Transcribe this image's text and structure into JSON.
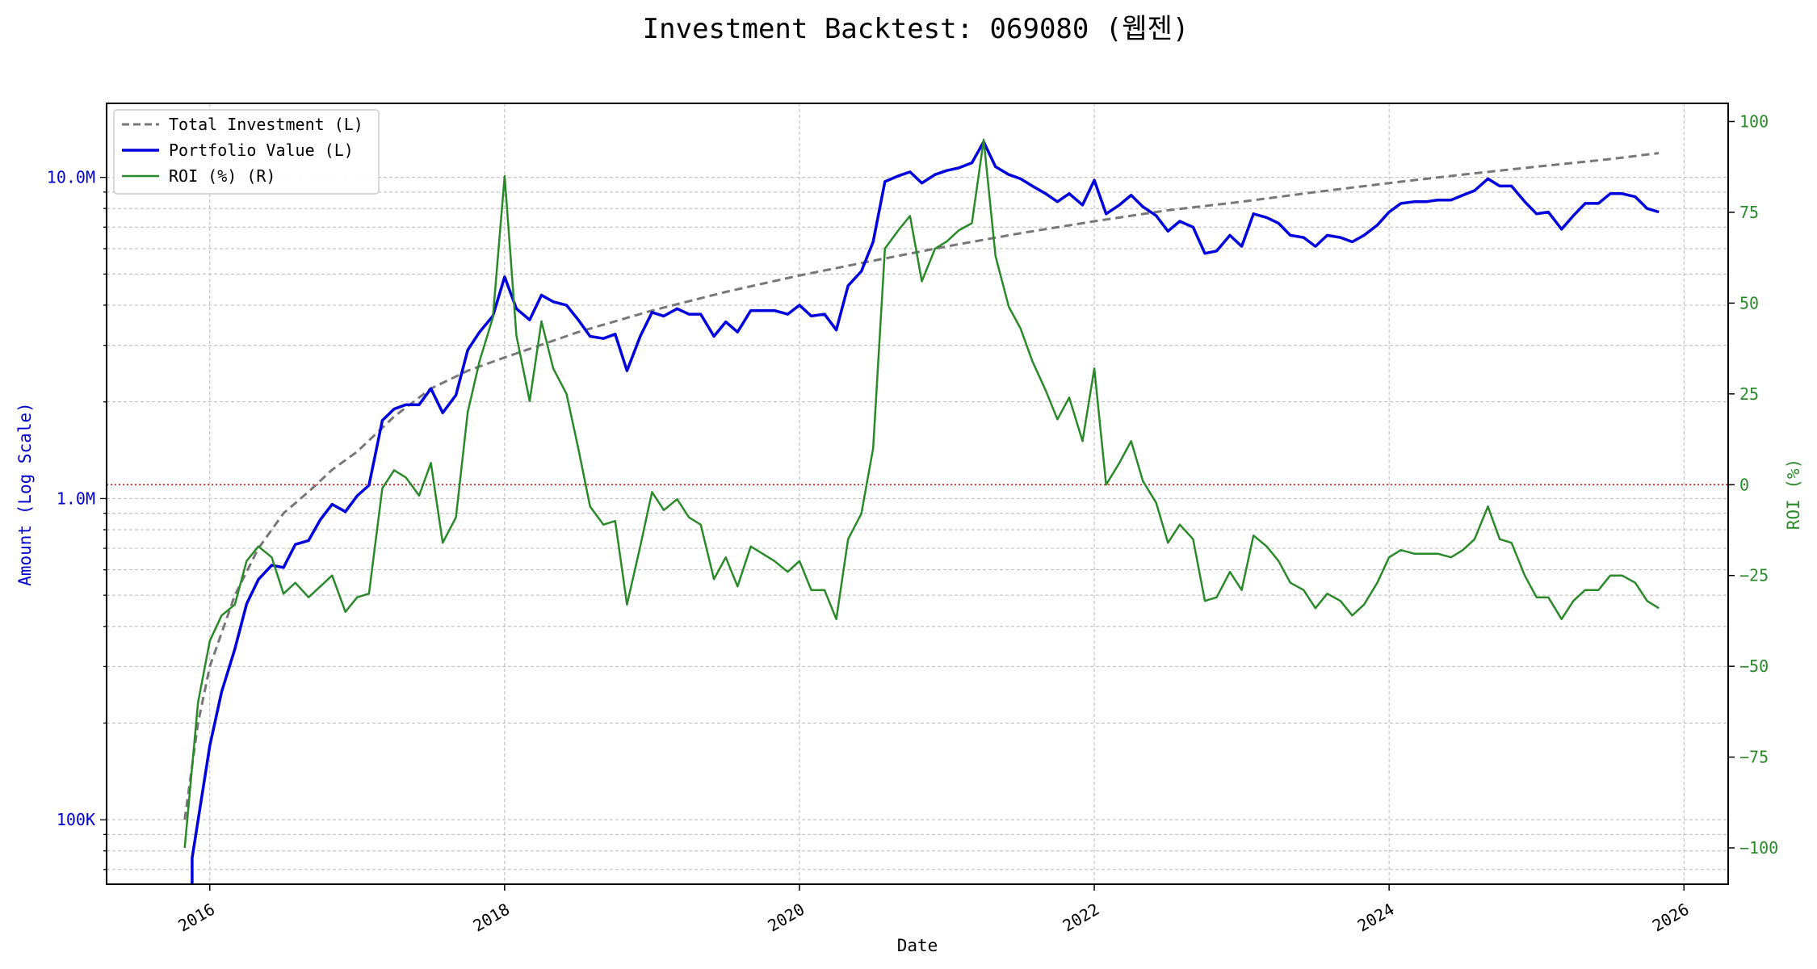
{
  "chart_data": {
    "type": "line",
    "title": "Investment Backtest: 069080 (웹젠)",
    "xlabel": "Date",
    "ylabel_left": "Amount (Log Scale)",
    "ylabel_right": "ROI (%)",
    "left_scale": "log",
    "left_ylim": [
      63000,
      17000000
    ],
    "right_ylim": [
      -110,
      105
    ],
    "xlim": [
      2015.3,
      2026.3
    ],
    "x_ticks": [
      2016,
      2018,
      2020,
      2022,
      2024,
      2026
    ],
    "x_tick_labels": [
      "2016",
      "2018",
      "2020",
      "2022",
      "2024",
      "2026"
    ],
    "left_ticks": [
      100000,
      1000000,
      10000000
    ],
    "left_tick_labels": [
      "100K",
      "1.0M",
      "10.0M"
    ],
    "right_ticks": [
      -100,
      -75,
      -50,
      -25,
      0,
      25,
      50,
      75,
      100
    ],
    "right_tick_labels": [
      "−100",
      "−75",
      "−50",
      "−25",
      "0",
      "25",
      "50",
      "75",
      "100"
    ],
    "grid": true,
    "legend_position": "top-left",
    "reference_line": {
      "axis": "right",
      "value": 0,
      "color": "#cc0000"
    },
    "colors": {
      "investment": "#777777",
      "portfolio": "#0000dd",
      "roi": "#2a8a2a",
      "left_axis": "#0000cc",
      "right_axis": "#2a8a2a"
    },
    "series": [
      {
        "name": "Total Investment (L)",
        "axis": "left",
        "style": "dashed",
        "x": [
          2015.83,
          2015.92,
          2016.0,
          2016.17,
          2016.33,
          2016.5,
          2016.67,
          2016.83,
          2017.0,
          2017.25,
          2017.5,
          2017.75,
          2018.0,
          2018.5,
          2019.0,
          2019.5,
          2020.0,
          2020.5,
          2021.0,
          2021.5,
          2022.0,
          2022.5,
          2023.0,
          2023.5,
          2024.0,
          2024.5,
          2025.0,
          2025.5,
          2025.83
        ],
        "y": [
          100000,
          200000,
          300000,
          500000,
          700000,
          900000,
          1050000,
          1230000,
          1400000,
          1800000,
          2200000,
          2500000,
          2750000,
          3300000,
          3850000,
          4400000,
          4950000,
          5500000,
          6100000,
          6700000,
          7300000,
          7900000,
          8400000,
          9000000,
          9600000,
          10200000,
          10800000,
          11400000,
          11900000
        ]
      },
      {
        "name": "Portfolio Value (L)",
        "axis": "left",
        "style": "solid",
        "x": [
          2015.88,
          2015.88,
          2016.0,
          2016.08,
          2016.17,
          2016.25,
          2016.33,
          2016.42,
          2016.5,
          2016.58,
          2016.67,
          2016.75,
          2016.83,
          2016.92,
          2017.0,
          2017.08,
          2017.17,
          2017.25,
          2017.33,
          2017.42,
          2017.5,
          2017.58,
          2017.67,
          2017.75,
          2017.83,
          2017.92,
          2018.0,
          2018.08,
          2018.17,
          2018.25,
          2018.33,
          2018.42,
          2018.5,
          2018.58,
          2018.67,
          2018.75,
          2018.83,
          2018.92,
          2019.0,
          2019.08,
          2019.17,
          2019.25,
          2019.33,
          2019.42,
          2019.5,
          2019.58,
          2019.67,
          2019.75,
          2019.83,
          2019.92,
          2020.0,
          2020.08,
          2020.17,
          2020.25,
          2020.33,
          2020.42,
          2020.5,
          2020.58,
          2020.67,
          2020.75,
          2020.83,
          2020.92,
          2021.0,
          2021.08,
          2021.17,
          2021.25,
          2021.33,
          2021.42,
          2021.5,
          2021.58,
          2021.67,
          2021.75,
          2021.83,
          2021.92,
          2022.0,
          2022.08,
          2022.17,
          2022.25,
          2022.33,
          2022.42,
          2022.5,
          2022.58,
          2022.67,
          2022.75,
          2022.83,
          2022.92,
          2023.0,
          2023.08,
          2023.17,
          2023.25,
          2023.33,
          2023.42,
          2023.5,
          2023.58,
          2023.67,
          2023.75,
          2023.83,
          2023.92,
          2024.0,
          2024.08,
          2024.17,
          2024.25,
          2024.33,
          2024.42,
          2024.5,
          2024.58,
          2024.67,
          2024.75,
          2024.83,
          2024.92,
          2025.0,
          2025.08,
          2025.17,
          2025.25,
          2025.33,
          2025.42,
          2025.5,
          2025.58,
          2025.67,
          2025.75,
          2025.83
        ],
        "y": [
          63000,
          76000,
          170000,
          250000,
          340000,
          470000,
          560000,
          620000,
          610000,
          720000,
          740000,
          860000,
          960000,
          910000,
          1020000,
          1100000,
          1750000,
          1900000,
          1960000,
          1960000,
          2200000,
          1850000,
          2100000,
          2900000,
          3300000,
          3700000,
          4900000,
          3900000,
          3600000,
          4300000,
          4100000,
          4000000,
          3600000,
          3200000,
          3150000,
          3250000,
          2500000,
          3200000,
          3800000,
          3700000,
          3900000,
          3750000,
          3750000,
          3200000,
          3550000,
          3300000,
          3850000,
          3850000,
          3850000,
          3750000,
          4000000,
          3700000,
          3750000,
          3350000,
          4600000,
          5100000,
          6300000,
          9700000,
          10100000,
          10400000,
          9600000,
          10200000,
          10500000,
          10700000,
          11100000,
          12900000,
          10800000,
          10200000,
          9900000,
          9400000,
          8900000,
          8400000,
          8900000,
          8200000,
          9800000,
          7700000,
          8200000,
          8800000,
          8100000,
          7600000,
          6800000,
          7300000,
          7000000,
          5800000,
          5900000,
          6600000,
          6100000,
          7700000,
          7500000,
          7200000,
          6600000,
          6500000,
          6100000,
          6600000,
          6500000,
          6300000,
          6600000,
          7100000,
          7800000,
          8300000,
          8400000,
          8400000,
          8500000,
          8500000,
          8800000,
          9100000,
          9900000,
          9400000,
          9400000,
          8400000,
          7700000,
          7800000,
          6900000,
          7600000,
          8300000,
          8300000,
          8900000,
          8900000,
          8700000,
          8000000,
          7800000
        ]
      },
      {
        "name": "ROI (%) (R)",
        "axis": "right",
        "style": "solid",
        "x": [
          2015.83,
          2015.92,
          2016.0,
          2016.08,
          2016.17,
          2016.25,
          2016.33,
          2016.42,
          2016.5,
          2016.58,
          2016.67,
          2016.75,
          2016.83,
          2016.92,
          2017.0,
          2017.08,
          2017.17,
          2017.25,
          2017.33,
          2017.42,
          2017.5,
          2017.58,
          2017.67,
          2017.75,
          2017.83,
          2017.92,
          2018.0,
          2018.08,
          2018.17,
          2018.25,
          2018.33,
          2018.42,
          2018.5,
          2018.58,
          2018.67,
          2018.75,
          2018.83,
          2018.92,
          2019.0,
          2019.08,
          2019.17,
          2019.25,
          2019.33,
          2019.42,
          2019.5,
          2019.58,
          2019.67,
          2019.75,
          2019.83,
          2019.92,
          2020.0,
          2020.08,
          2020.17,
          2020.25,
          2020.33,
          2020.42,
          2020.5,
          2020.58,
          2020.67,
          2020.75,
          2020.83,
          2020.92,
          2021.0,
          2021.08,
          2021.17,
          2021.25,
          2021.33,
          2021.42,
          2021.5,
          2021.58,
          2021.67,
          2021.75,
          2021.83,
          2021.92,
          2022.0,
          2022.08,
          2022.17,
          2022.25,
          2022.33,
          2022.42,
          2022.5,
          2022.58,
          2022.67,
          2022.75,
          2022.83,
          2022.92,
          2023.0,
          2023.08,
          2023.17,
          2023.25,
          2023.33,
          2023.42,
          2023.5,
          2023.58,
          2023.67,
          2023.75,
          2023.83,
          2023.92,
          2024.0,
          2024.08,
          2024.17,
          2024.25,
          2024.33,
          2024.42,
          2024.5,
          2024.58,
          2024.67,
          2024.75,
          2024.83,
          2024.92,
          2025.0,
          2025.08,
          2025.17,
          2025.25,
          2025.33,
          2025.42,
          2025.5,
          2025.58,
          2025.67,
          2025.75,
          2025.83
        ],
        "y": [
          -100,
          -60,
          -43,
          -36,
          -33,
          -21,
          -17,
          -20,
          -30,
          -27,
          -31,
          -28,
          -25,
          -35,
          -31,
          -30,
          -1,
          4,
          2,
          -3,
          6,
          -16,
          -9,
          20,
          34,
          46,
          85,
          41,
          23,
          45,
          32,
          25,
          10,
          -6,
          -11,
          -10,
          -33,
          -17,
          -2,
          -7,
          -4,
          -9,
          -11,
          -26,
          -20,
          -28,
          -17,
          -19,
          -21,
          -24,
          -21,
          -29,
          -29,
          -37,
          -15,
          -8,
          10,
          65,
          70,
          74,
          56,
          65,
          67,
          70,
          72,
          95,
          63,
          49,
          43,
          34,
          26,
          18,
          24,
          12,
          32,
          0,
          6,
          12,
          1,
          -5,
          -16,
          -11,
          -15,
          -32,
          -31,
          -24,
          -29,
          -14,
          -17,
          -21,
          -27,
          -29,
          -34,
          -30,
          -32,
          -36,
          -33,
          -27,
          -20,
          -18,
          -19,
          -19,
          -19,
          -20,
          -18,
          -15,
          -6,
          -15,
          -16,
          -25,
          -31,
          -31,
          -37,
          -32,
          -29,
          -29,
          -25,
          -25,
          -27,
          -32,
          -34
        ]
      }
    ]
  }
}
